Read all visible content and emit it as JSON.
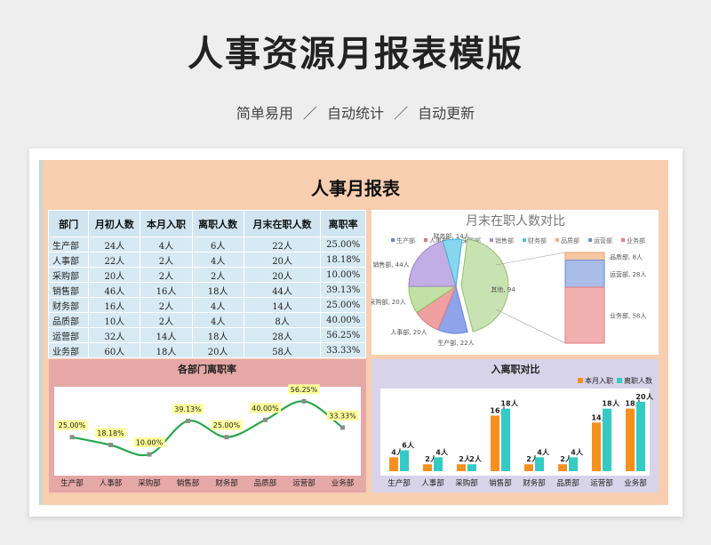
{
  "header": {
    "title": "人事资源月报表模版",
    "subtitle": "简单易用 ／ 自动统计 ／ 自动更新"
  },
  "sheet": {
    "title": "人事月报表"
  },
  "table": {
    "headers": [
      "部门",
      "月初人数",
      "本月入职",
      "离职人数",
      "月末在职人数",
      "离职率"
    ],
    "rows": [
      [
        "生产部",
        "24人",
        "4人",
        "6人",
        "22人",
        "25.00%"
      ],
      [
        "人事部",
        "22人",
        "2人",
        "4人",
        "20人",
        "18.18%"
      ],
      [
        "采购部",
        "20人",
        "2人",
        "2人",
        "20人",
        "10.00%"
      ],
      [
        "销售部",
        "46人",
        "16人",
        "18人",
        "44人",
        "39.13%"
      ],
      [
        "财务部",
        "16人",
        "2人",
        "4人",
        "14人",
        "25.00%"
      ],
      [
        "品质部",
        "10人",
        "2人",
        "4人",
        "8人",
        "40.00%"
      ],
      [
        "运营部",
        "32人",
        "14人",
        "18人",
        "28人",
        "56.25%"
      ],
      [
        "业务部",
        "60人",
        "18人",
        "20人",
        "58人",
        "33.33%"
      ]
    ]
  },
  "chart_data": [
    {
      "type": "pie",
      "title": "月末在职人数对比",
      "legend": [
        "生产部",
        "人事部",
        "采购部",
        "销售部",
        "财务部",
        "品质部",
        "运营部",
        "业务部"
      ],
      "slices": [
        {
          "label": "生产部, 22人",
          "value": 22
        },
        {
          "label": "人事部, 20人",
          "value": 20
        },
        {
          "label": "采购部, 20人",
          "value": 20
        },
        {
          "label": "销售部, 44人",
          "value": 44
        },
        {
          "label": "财务部, 14人",
          "value": 14
        },
        {
          "label": "其他, 94",
          "value": 94
        }
      ],
      "bar_of_pie": [
        {
          "label": "品质部, 8人",
          "value": 8
        },
        {
          "label": "运营部, 28人",
          "value": 28
        },
        {
          "label": "业务部, 58人",
          "value": 58
        }
      ],
      "colors": [
        "#6b87d6",
        "#e07a7a",
        "#a8cf82",
        "#a48bd0",
        "#58c0e0",
        "#f0b07a",
        "#6b8fd0",
        "#e08080"
      ]
    },
    {
      "type": "line",
      "title": "各部门离职率",
      "categories": [
        "生产部",
        "人事部",
        "采购部",
        "销售部",
        "财务部",
        "品质部",
        "运营部",
        "业务部"
      ],
      "values": [
        25.0,
        18.18,
        10.0,
        39.13,
        25.0,
        40.0,
        56.25,
        33.33
      ],
      "labels": [
        "25.00%",
        "18.18%",
        "10.00%",
        "39.13%",
        "25.00%",
        "40.00%",
        "56.25%",
        "33.33%"
      ],
      "ylim": [
        0,
        65
      ]
    },
    {
      "type": "bar",
      "title": "入离职对比",
      "categories": [
        "生产部",
        "人事部",
        "采购部",
        "销售部",
        "财务部",
        "品质部",
        "运营部",
        "业务部"
      ],
      "series": [
        {
          "name": "本月入职",
          "values": [
            4,
            2,
            2,
            16,
            2,
            2,
            14,
            18
          ],
          "color": "#f5901f"
        },
        {
          "name": "离职人数",
          "values": [
            6,
            4,
            2,
            18,
            4,
            4,
            18,
            20
          ],
          "color": "#35cbc4"
        }
      ],
      "ylim": [
        0,
        22
      ]
    }
  ]
}
